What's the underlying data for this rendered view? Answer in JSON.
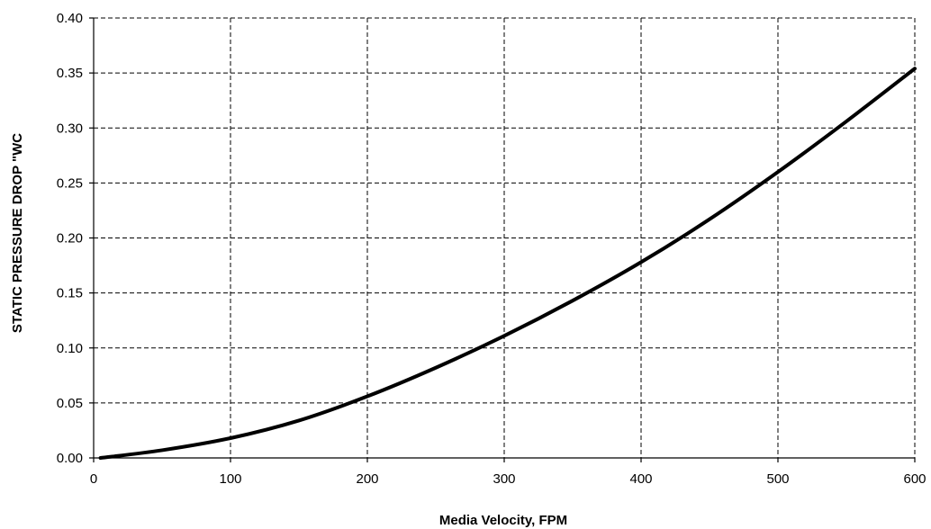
{
  "chart_data": {
    "type": "line",
    "title": "",
    "xlabel": "Media Velocity, FPM",
    "ylabel": "STATIC PRESSURE DROP \"WC",
    "xlim": [
      0,
      600
    ],
    "ylim": [
      0,
      0.4
    ],
    "x_ticks": [
      "0",
      "100",
      "200",
      "300",
      "400",
      "500",
      "600"
    ],
    "y_ticks": [
      "0.00",
      "0.05",
      "0.10",
      "0.15",
      "0.20",
      "0.25",
      "0.30",
      "0.35",
      "0.40"
    ],
    "grid": true,
    "series": [
      {
        "name": "",
        "x": [
          5,
          50,
          100,
          150,
          200,
          250,
          300,
          350,
          400,
          450,
          500,
          550,
          600
        ],
        "y": [
          0.0,
          0.007,
          0.018,
          0.034,
          0.056,
          0.082,
          0.111,
          0.143,
          0.178,
          0.217,
          0.26,
          0.306,
          0.354
        ]
      }
    ]
  }
}
